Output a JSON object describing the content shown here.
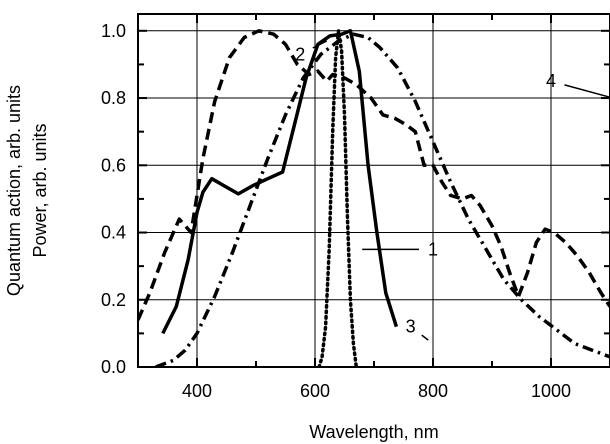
{
  "chart_data": {
    "type": "line",
    "title": "",
    "xlabel": "Wavelength, nm",
    "ylabel": "Quantum action, arb. units",
    "ylabel2": "Power,  arb. units",
    "xlim": [
      300,
      1100
    ],
    "ylim": [
      0,
      1.05
    ],
    "x_ticks": [
      400,
      600,
      800,
      1000
    ],
    "x_tick_labels": [
      "400",
      "600",
      "800",
      "1000"
    ],
    "x_minor_step": 100,
    "y_ticks": [
      0.0,
      0.2,
      0.4,
      0.6,
      0.8,
      1.0
    ],
    "y_tick_labels": [
      "0.0",
      "0.2",
      "0.4",
      "0.6",
      "0.8",
      "1.0"
    ],
    "y_minor_step": 0.1,
    "grid": true,
    "series": [
      {
        "name": "1",
        "style": "solid",
        "points": [
          [
            342,
            0.1
          ],
          [
            365,
            0.18
          ],
          [
            385,
            0.32
          ],
          [
            400,
            0.46
          ],
          [
            410,
            0.52
          ],
          [
            425,
            0.56
          ],
          [
            445,
            0.54
          ],
          [
            470,
            0.515
          ],
          [
            495,
            0.54
          ],
          [
            520,
            0.56
          ],
          [
            545,
            0.58
          ],
          [
            565,
            0.72
          ],
          [
            585,
            0.86
          ],
          [
            605,
            0.96
          ],
          [
            625,
            0.985
          ],
          [
            645,
            0.99
          ],
          [
            660,
            1.0
          ],
          [
            675,
            0.88
          ],
          [
            690,
            0.6
          ],
          [
            705,
            0.4
          ],
          [
            720,
            0.22
          ],
          [
            738,
            0.12
          ]
        ]
      },
      {
        "name": "2",
        "style": "dashed",
        "points": [
          [
            300,
            0.14
          ],
          [
            320,
            0.22
          ],
          [
            345,
            0.34
          ],
          [
            370,
            0.44
          ],
          [
            390,
            0.4
          ],
          [
            410,
            0.62
          ],
          [
            430,
            0.79
          ],
          [
            455,
            0.92
          ],
          [
            480,
            0.98
          ],
          [
            505,
            1.0
          ],
          [
            530,
            0.99
          ],
          [
            550,
            0.96
          ],
          [
            570,
            0.9
          ],
          [
            590,
            0.87
          ],
          [
            605,
            0.88
          ],
          [
            620,
            0.85
          ],
          [
            630,
            0.87
          ],
          [
            650,
            0.86
          ],
          [
            670,
            0.84
          ],
          [
            695,
            0.8
          ],
          [
            715,
            0.75
          ],
          [
            735,
            0.74
          ],
          [
            755,
            0.72
          ],
          [
            770,
            0.7
          ],
          [
            785,
            0.6
          ],
          [
            800,
            0.6
          ],
          [
            815,
            0.55
          ],
          [
            830,
            0.51
          ],
          [
            850,
            0.5
          ],
          [
            865,
            0.51
          ],
          [
            880,
            0.48
          ],
          [
            900,
            0.42
          ],
          [
            915,
            0.36
          ],
          [
            930,
            0.28
          ],
          [
            945,
            0.21
          ],
          [
            960,
            0.28
          ],
          [
            975,
            0.37
          ],
          [
            990,
            0.41
          ],
          [
            1005,
            0.4
          ],
          [
            1025,
            0.37
          ],
          [
            1045,
            0.33
          ],
          [
            1065,
            0.28
          ],
          [
            1085,
            0.22
          ],
          [
            1100,
            0.18
          ]
        ]
      },
      {
        "name": "3",
        "style": "dotted",
        "points": [
          [
            607,
            0.0
          ],
          [
            612,
            0.03
          ],
          [
            618,
            0.12
          ],
          [
            624,
            0.35
          ],
          [
            630,
            0.7
          ],
          [
            635,
            0.92
          ],
          [
            640,
            1.0
          ],
          [
            645,
            0.94
          ],
          [
            650,
            0.75
          ],
          [
            655,
            0.45
          ],
          [
            660,
            0.2
          ],
          [
            665,
            0.07
          ],
          [
            670,
            0.0
          ]
        ]
      },
      {
        "name": "4",
        "style": "dashdot",
        "points": [
          [
            330,
            0.0
          ],
          [
            360,
            0.02
          ],
          [
            380,
            0.05
          ],
          [
            400,
            0.1
          ],
          [
            430,
            0.21
          ],
          [
            460,
            0.34
          ],
          [
            490,
            0.48
          ],
          [
            520,
            0.62
          ],
          [
            550,
            0.75
          ],
          [
            580,
            0.86
          ],
          [
            610,
            0.93
          ],
          [
            640,
            0.97
          ],
          [
            665,
            0.99
          ],
          [
            690,
            0.98
          ],
          [
            710,
            0.95
          ],
          [
            740,
            0.89
          ],
          [
            770,
            0.79
          ],
          [
            800,
            0.67
          ],
          [
            830,
            0.55
          ],
          [
            860,
            0.44
          ],
          [
            890,
            0.35
          ],
          [
            920,
            0.26
          ],
          [
            950,
            0.2
          ],
          [
            980,
            0.15
          ],
          [
            1010,
            0.11
          ],
          [
            1040,
            0.07
          ],
          [
            1070,
            0.05
          ],
          [
            1100,
            0.03
          ]
        ]
      }
    ],
    "curve_labels": [
      {
        "text": "1",
        "x": 800,
        "y": 0.35,
        "leader_to": [
          680,
          0.35
        ]
      },
      {
        "text": "2",
        "x": 575,
        "y": 0.93,
        "leader_to": [
          620,
          0.97
        ]
      },
      {
        "text": "3",
        "x": 762,
        "y": 0.12,
        "leader_to": [
          792,
          0.08
        ]
      },
      {
        "text": "4",
        "x": 1000,
        "y": 0.85,
        "leader_to": [
          1105,
          0.8
        ]
      }
    ]
  }
}
